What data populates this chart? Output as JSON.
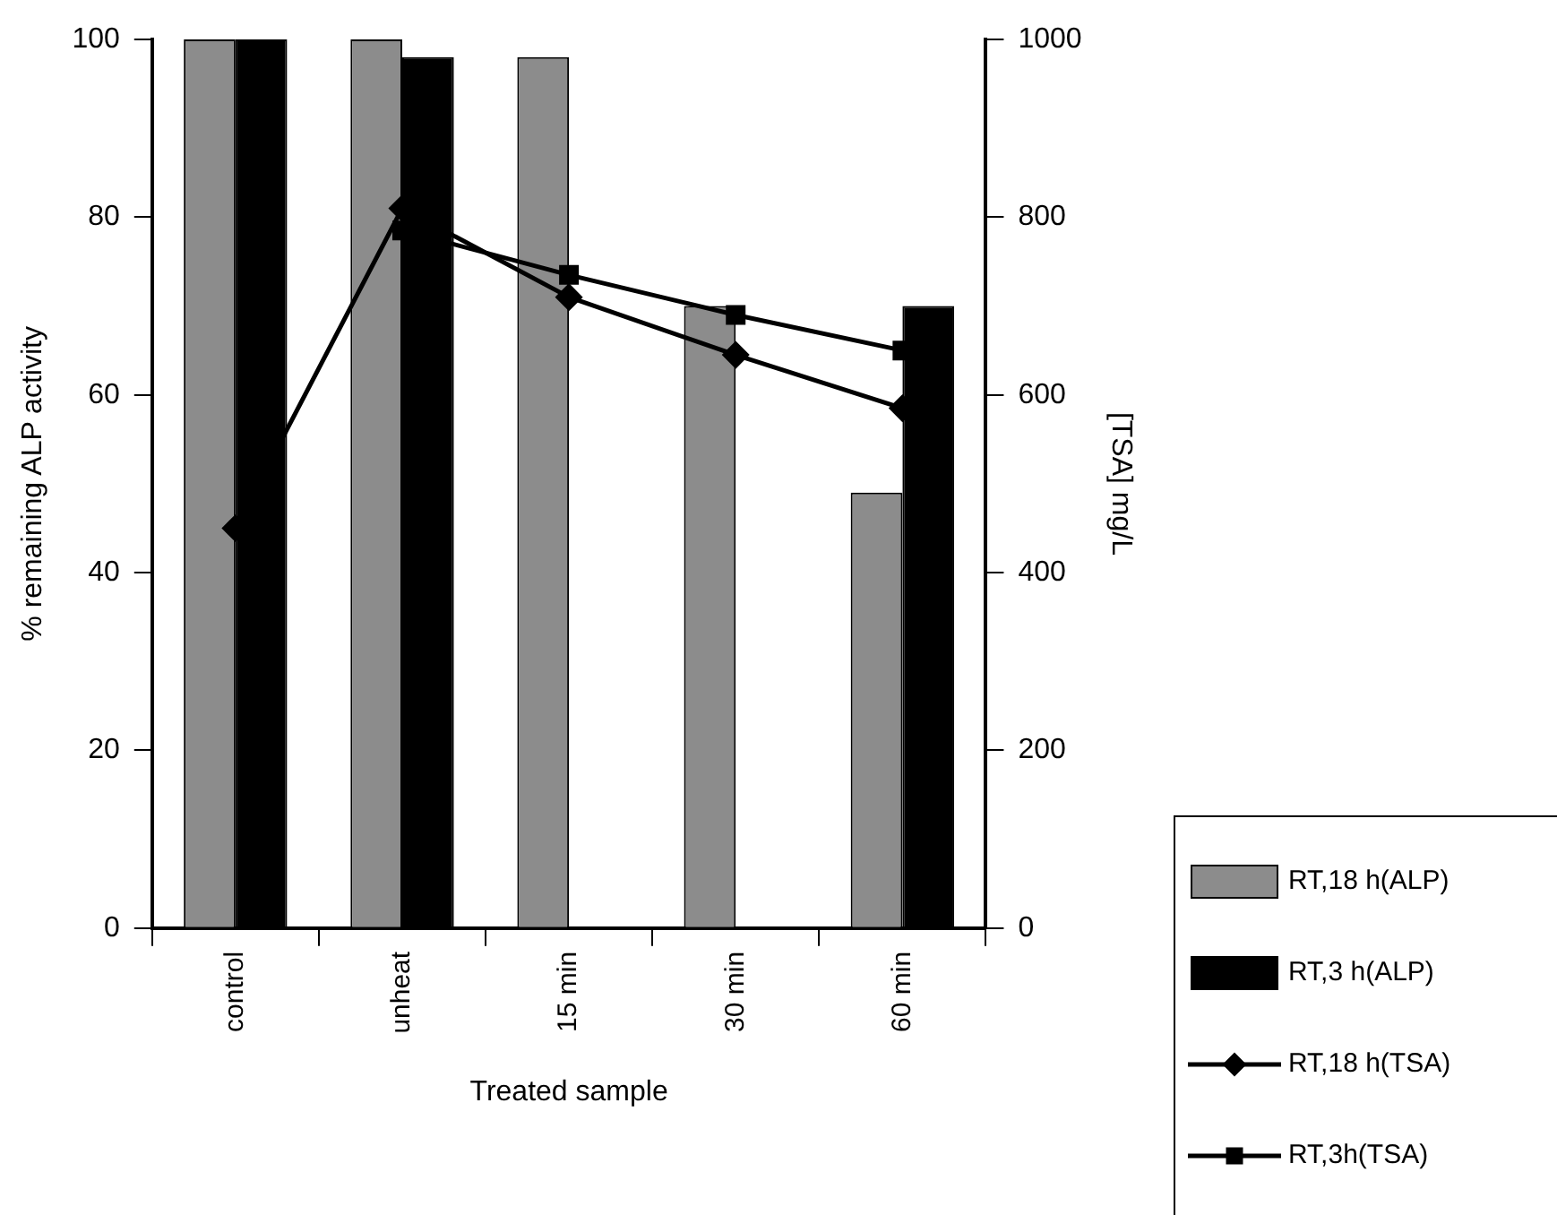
{
  "chart_data": {
    "type": "bar",
    "xlabel": "Treated sample",
    "ylabel": "% remaining ALP activity",
    "y2label": "[TSA] mg/L",
    "categories": [
      "control",
      "unheat",
      "15 min",
      "30 min",
      "60 min"
    ],
    "series": [
      {
        "name": "RT,18 h(ALP)",
        "color": "#8c8c8c",
        "values": [
          100,
          100,
          98,
          70,
          49
        ]
      },
      {
        "name": "RT,3 h(ALP)",
        "color": "#000000",
        "values": [
          100,
          98,
          null,
          null,
          70
        ]
      },
      {
        "name": "RT,18 h(TSA)",
        "type": "line",
        "axis": "y2",
        "marker": "diamond",
        "color": "#000000",
        "values": [
          450,
          810,
          710,
          645,
          585
        ]
      },
      {
        "name": "RT,3h(TSA)",
        "type": "line",
        "axis": "y2",
        "marker": "square",
        "color": "#000000",
        "values": [
          null,
          785,
          735,
          690,
          650
        ]
      }
    ],
    "ylim": [
      0,
      100
    ],
    "yticks": [
      0,
      20,
      40,
      60,
      80,
      100
    ],
    "y2lim": [
      0,
      1000
    ],
    "y2ticks": [
      0,
      200,
      400,
      600,
      800,
      1000
    ],
    "grid": false,
    "legend": "bottom right"
  }
}
